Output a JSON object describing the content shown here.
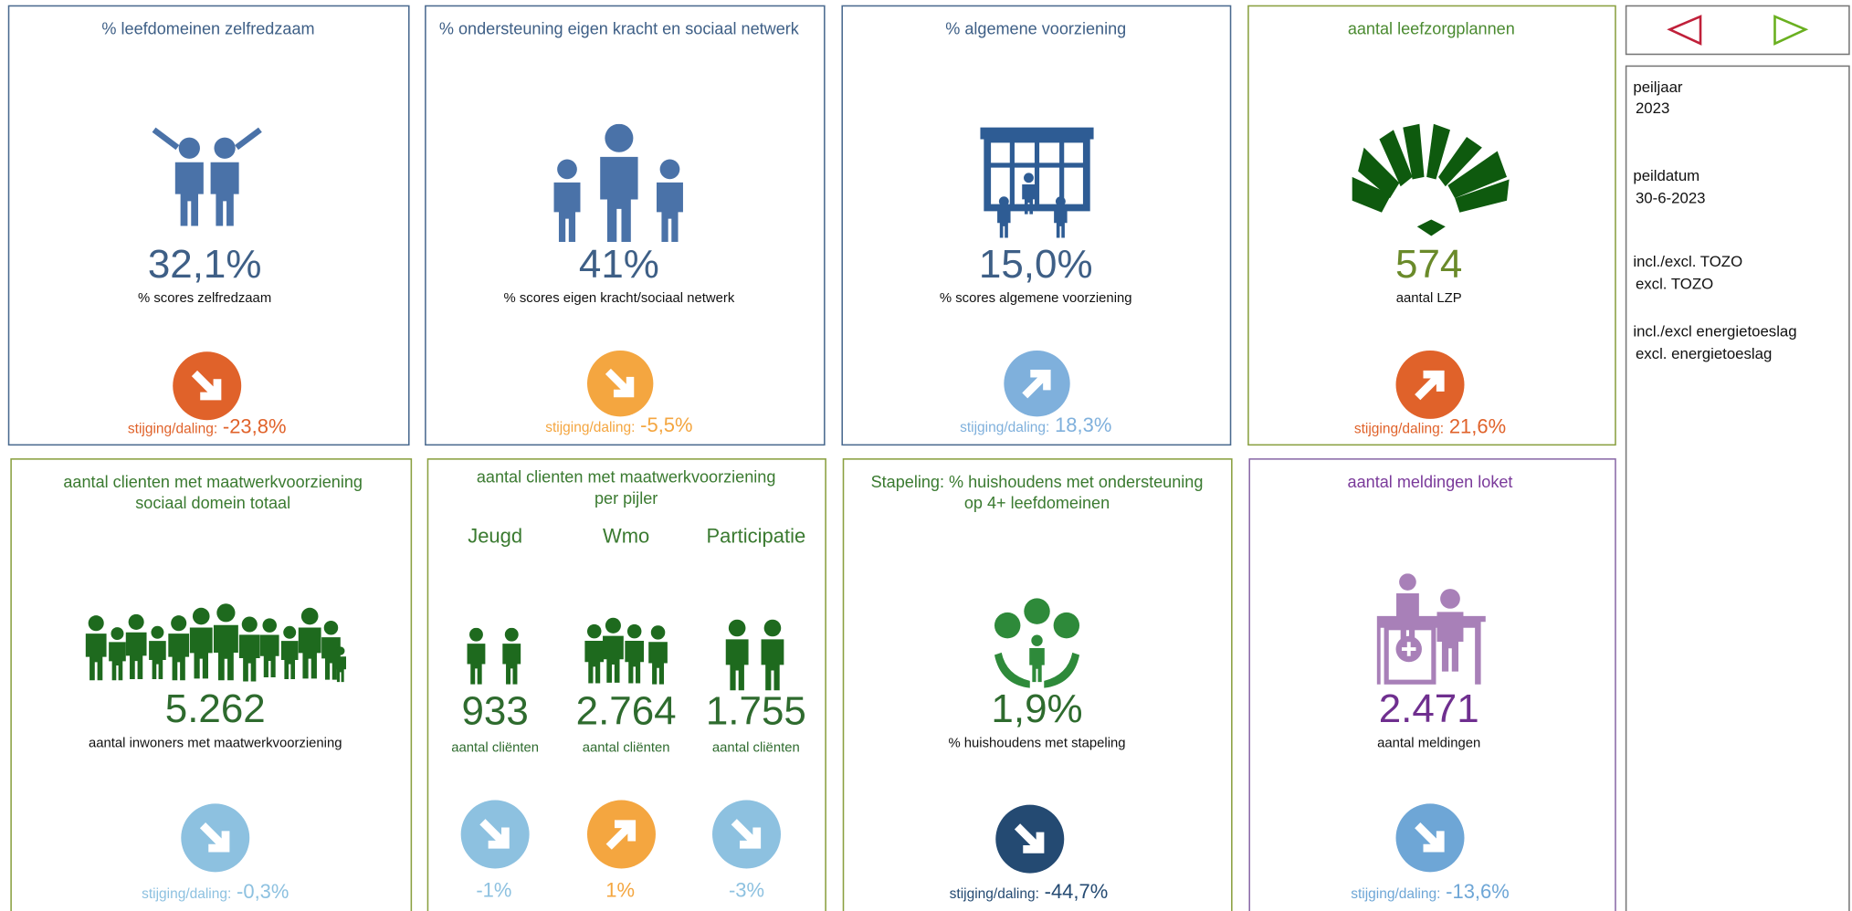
{
  "cards": [
    {
      "title": [
        "% leefdomeinen zelfredzaam"
      ],
      "value": "32,1%",
      "label": "% scores zelfredzaam",
      "change_label": "stijging/daling:",
      "change": "-23,8%"
    },
    {
      "title": [
        "% ondersteuning eigen kracht en sociaal netwerk"
      ],
      "value": "41%",
      "label": "% scores eigen kracht/sociaal netwerk",
      "change_label": "stijging/daling:",
      "change": "-5,5%"
    },
    {
      "title": [
        "% algemene voorziening"
      ],
      "value": "15,0%",
      "label": "% scores algemene voorziening",
      "change_label": "stijging/daling:",
      "change": "18,3%"
    },
    {
      "title": [
        "aantal leefzorgplannen"
      ],
      "value": "574",
      "label": "aantal LZP",
      "change_label": "stijging/daling:",
      "change": "21,6%"
    },
    {
      "title": [
        "aantal clienten met maatwerkvoorziening",
        "sociaal domein totaal"
      ],
      "value": "5.262",
      "label": "aantal inwoners met maatwerkvoorziening",
      "change_label": "stijging/daling:",
      "change": "-0,3%"
    },
    {
      "title": [
        "Stapeling: % huishoudens met ondersteuning",
        "op 4+ leefdomeinen"
      ],
      "value": "1,9%",
      "label": "% huishoudens met stapeling",
      "change_label": "stijging/daling:",
      "change": "-44,7%"
    },
    {
      "title": [
        "aantal meldingen loket"
      ],
      "value": "2.471",
      "label": "aantal meldingen",
      "change_label": "stijging/daling:",
      "change": "-13,6%"
    }
  ],
  "pillar_card": {
    "title": [
      "aantal clienten met maatwerkvoorziening",
      "per pijler"
    ],
    "pillars": [
      {
        "name": "Jeugd",
        "value": "933",
        "label": "aantal cliënten",
        "change": "-1%"
      },
      {
        "name": "Wmo",
        "value": "2.764",
        "label": "aantal cliënten",
        "change": "1%"
      },
      {
        "name": "Participatie",
        "value": "1.755",
        "label": "aantal cliënten",
        "change": "-3%"
      }
    ]
  },
  "sidebar": [
    {
      "label": "peiljaar",
      "value": "2023"
    },
    {
      "label": "peildatum",
      "value": "30-6-2023"
    },
    {
      "label": "incl./excl. TOZO",
      "value": "excl. TOZO"
    },
    {
      "label": "incl./excl energietoeslag",
      "value": "excl. energietoeslag"
    }
  ]
}
